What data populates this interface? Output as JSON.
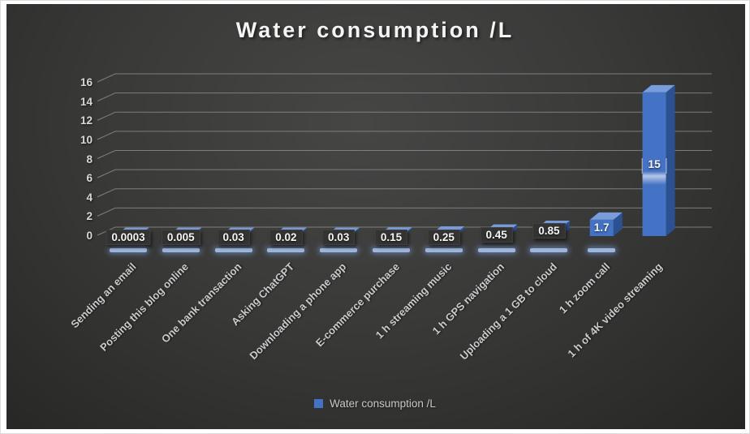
{
  "title": "Water consumption /L",
  "legend": {
    "label": "Water consumption /L",
    "swatch_color": "#4472C4"
  },
  "colors": {
    "bar_front": "#4472C4",
    "bar_side": "#2C5190",
    "bar_top": "#7A9CDA",
    "gridline": "#8F8F8F",
    "background_center": "#464645",
    "background_edge": "#262625",
    "label_box_bg": "#333332",
    "text_light": "#D8D8D8"
  },
  "chart_data": {
    "type": "bar",
    "style": "3d-column-dark",
    "title": "Water consumption /L",
    "xlabel": "",
    "ylabel": "",
    "ylim": [
      0,
      16
    ],
    "y_ticks": [
      0,
      2,
      4,
      6,
      8,
      10,
      12,
      14,
      16
    ],
    "grid": true,
    "legend_position": "bottom",
    "categories": [
      "Sending an email",
      "Posting this blog online",
      "One bank transaction",
      "Asking ChatGPT",
      "Downloading a phone app",
      "E-commerce purchase",
      "1 h streaming music",
      "1 h GPS navigation",
      "Uploading a 1 GB to cloud",
      "1 h zoom call",
      "1 h of 4K video streaming"
    ],
    "values": [
      0.0003,
      0.005,
      0.03,
      0.02,
      0.03,
      0.15,
      0.25,
      0.45,
      0.85,
      1.7,
      15
    ],
    "value_labels": [
      "0.0003",
      "0.005",
      "0.03",
      "0.02",
      "0.03",
      "0.15",
      "0.25",
      "0.45",
      "0.85",
      "1.7",
      "15"
    ],
    "series": [
      {
        "name": "Water consumption /L",
        "values": [
          0.0003,
          0.005,
          0.03,
          0.02,
          0.03,
          0.15,
          0.25,
          0.45,
          0.85,
          1.7,
          15
        ]
      }
    ]
  }
}
